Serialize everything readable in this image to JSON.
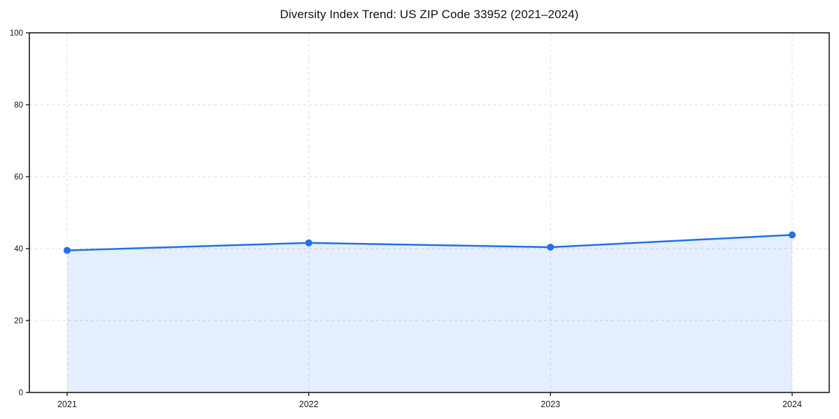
{
  "chart_data": {
    "type": "area",
    "title": "Diversity Index Trend: US ZIP Code 33952 (2021–2024)",
    "categories": [
      "2021",
      "2022",
      "2023",
      "2024"
    ],
    "series": [
      {
        "name": "Diversity Index",
        "values": [
          39.5,
          41.6,
          40.4,
          43.8
        ]
      }
    ],
    "xlabel": "",
    "ylabel": "",
    "ylim": [
      0,
      100
    ],
    "y_ticks": [
      0,
      20,
      40,
      60,
      80,
      100
    ],
    "grid": true,
    "grid_style": "dashed",
    "legend": false,
    "marker": "circle",
    "colors": {
      "line": "#2170E8",
      "marker": "#2170E8",
      "fill": "#2170E8",
      "fill_opacity": 0.12,
      "grid": "#DCDCDC",
      "frame": "#1A1A1A",
      "tick_label": "#1A1A1A",
      "background": "#FFFFFF"
    }
  }
}
